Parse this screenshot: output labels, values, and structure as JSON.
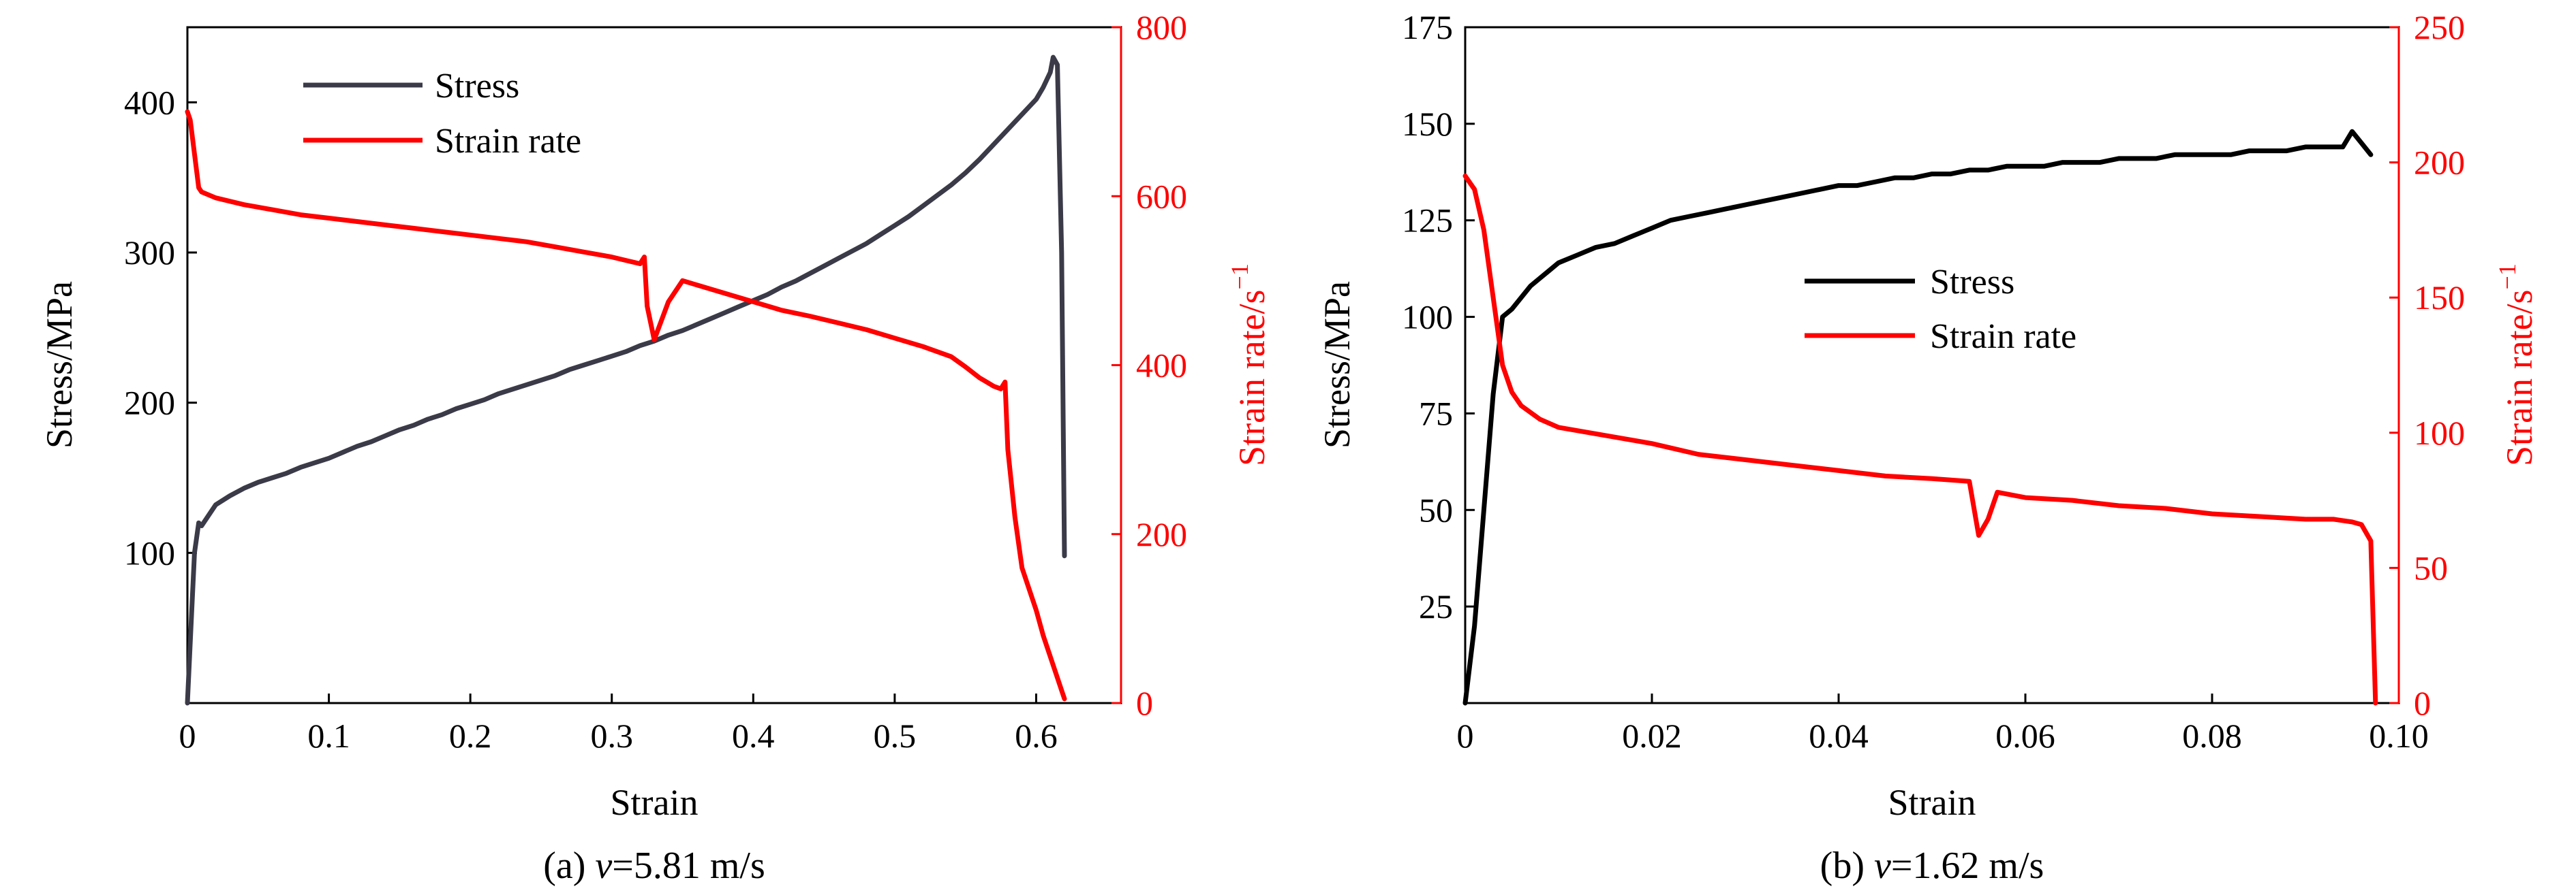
{
  "chart_data": [
    {
      "type": "line",
      "caption": "(a) v=5.81 m/s",
      "caption_prefix": "(a) ",
      "caption_var": "v",
      "caption_rest": "=5.81 m/s",
      "xlabel": "Strain",
      "ylabel": "Stress/MPa",
      "y2label_base": "Strain rate/s",
      "y2label_exp": "−1",
      "xlim": [
        0,
        0.66
      ],
      "ylim": [
        0,
        450
      ],
      "y2lim": [
        0,
        800
      ],
      "xticks": [
        0,
        0.1,
        0.2,
        0.3,
        0.4,
        0.5,
        0.6
      ],
      "xtick_labels": [
        "0",
        "0.1",
        "0.2",
        "0.3",
        "0.4",
        "0.5",
        "0.6"
      ],
      "yticks": [
        100,
        200,
        300,
        400
      ],
      "ytick_labels": [
        "100",
        "200",
        "300",
        "400"
      ],
      "y2ticks": [
        0,
        200,
        400,
        600,
        800
      ],
      "y2tick_labels": [
        "0",
        "200",
        "400",
        "600",
        "800"
      ],
      "legend": "top-left",
      "grid": false,
      "colors": {
        "stress": "#3a3a48",
        "strain_rate": "#ff0000"
      },
      "series": [
        {
          "name": "Stress",
          "axis": "left",
          "x": [
            0.0,
            0.003,
            0.005,
            0.008,
            0.01,
            0.015,
            0.02,
            0.03,
            0.04,
            0.05,
            0.06,
            0.07,
            0.08,
            0.09,
            0.1,
            0.11,
            0.12,
            0.13,
            0.14,
            0.15,
            0.16,
            0.17,
            0.18,
            0.19,
            0.2,
            0.21,
            0.22,
            0.23,
            0.24,
            0.25,
            0.26,
            0.27,
            0.28,
            0.29,
            0.3,
            0.31,
            0.32,
            0.33,
            0.34,
            0.35,
            0.36,
            0.37,
            0.38,
            0.39,
            0.4,
            0.41,
            0.42,
            0.43,
            0.44,
            0.45,
            0.46,
            0.47,
            0.48,
            0.49,
            0.5,
            0.51,
            0.52,
            0.53,
            0.54,
            0.55,
            0.56,
            0.57,
            0.58,
            0.59,
            0.6,
            0.605,
            0.61,
            0.612,
            0.615,
            0.618,
            0.62
          ],
          "values": [
            0,
            60,
            100,
            120,
            118,
            125,
            132,
            138,
            143,
            147,
            150,
            153,
            157,
            160,
            163,
            167,
            171,
            174,
            178,
            182,
            185,
            189,
            192,
            196,
            199,
            202,
            206,
            209,
            212,
            215,
            218,
            222,
            225,
            228,
            231,
            234,
            238,
            241,
            245,
            248,
            252,
            256,
            260,
            264,
            268,
            272,
            277,
            281,
            286,
            291,
            296,
            301,
            306,
            312,
            318,
            324,
            331,
            338,
            345,
            353,
            362,
            372,
            382,
            392,
            402,
            410,
            420,
            430,
            425,
            300,
            98
          ]
        },
        {
          "name": "Strain rate",
          "axis": "right",
          "x": [
            0.0,
            0.002,
            0.005,
            0.008,
            0.01,
            0.02,
            0.04,
            0.06,
            0.08,
            0.1,
            0.12,
            0.14,
            0.16,
            0.18,
            0.2,
            0.22,
            0.24,
            0.26,
            0.28,
            0.3,
            0.31,
            0.32,
            0.323,
            0.325,
            0.33,
            0.34,
            0.35,
            0.36,
            0.38,
            0.4,
            0.42,
            0.44,
            0.46,
            0.48,
            0.5,
            0.52,
            0.54,
            0.55,
            0.56,
            0.565,
            0.57,
            0.575,
            0.578,
            0.58,
            0.585,
            0.59,
            0.6,
            0.605,
            0.61,
            0.615,
            0.618,
            0.62
          ],
          "values": [
            700,
            690,
            650,
            610,
            605,
            598,
            590,
            584,
            578,
            574,
            570,
            566,
            562,
            558,
            554,
            550,
            546,
            540,
            534,
            528,
            524,
            520,
            528,
            470,
            430,
            475,
            500,
            495,
            485,
            475,
            465,
            458,
            450,
            442,
            432,
            422,
            410,
            398,
            385,
            380,
            375,
            372,
            380,
            300,
            220,
            160,
            110,
            80,
            55,
            30,
            15,
            5
          ]
        }
      ]
    },
    {
      "type": "line",
      "caption": "(b) v=1.62 m/s",
      "caption_prefix": "(b) ",
      "caption_var": "v",
      "caption_rest": "=1.62 m/s",
      "xlabel": "Strain",
      "ylabel": "Stress/MPa",
      "y2label_base": "Strain rate/s",
      "y2label_exp": "−1",
      "xlim": [
        0,
        0.1
      ],
      "ylim": [
        0,
        175
      ],
      "y2lim": [
        0,
        250
      ],
      "xticks": [
        0,
        0.02,
        0.04,
        0.06,
        0.08,
        0.1
      ],
      "xtick_labels": [
        "0",
        "0.02",
        "0.04",
        "0.06",
        "0.08",
        "0.10"
      ],
      "yticks": [
        25,
        50,
        75,
        100,
        125,
        150,
        175
      ],
      "ytick_labels": [
        "25",
        "50",
        "75",
        "100",
        "125",
        "150",
        "175"
      ],
      "y2ticks": [
        0,
        50,
        100,
        150,
        200,
        250
      ],
      "y2tick_labels": [
        "0",
        "50",
        "100",
        "150",
        "200",
        "250"
      ],
      "legend": "center",
      "grid": false,
      "colors": {
        "stress": "#000000",
        "strain_rate": "#ff0000"
      },
      "series": [
        {
          "name": "Stress",
          "axis": "left",
          "x": [
            0.0,
            0.001,
            0.002,
            0.003,
            0.004,
            0.005,
            0.006,
            0.007,
            0.008,
            0.009,
            0.01,
            0.012,
            0.014,
            0.016,
            0.018,
            0.02,
            0.022,
            0.024,
            0.026,
            0.028,
            0.03,
            0.032,
            0.034,
            0.036,
            0.038,
            0.04,
            0.042,
            0.044,
            0.046,
            0.048,
            0.05,
            0.052,
            0.054,
            0.056,
            0.058,
            0.06,
            0.062,
            0.064,
            0.066,
            0.068,
            0.07,
            0.072,
            0.074,
            0.076,
            0.078,
            0.08,
            0.082,
            0.084,
            0.086,
            0.088,
            0.09,
            0.092,
            0.094,
            0.095,
            0.096,
            0.097
          ],
          "values": [
            0,
            20,
            50,
            80,
            100,
            102,
            105,
            108,
            110,
            112,
            114,
            116,
            118,
            119,
            121,
            123,
            125,
            126,
            127,
            128,
            129,
            130,
            131,
            132,
            133,
            134,
            134,
            135,
            136,
            136,
            137,
            137,
            138,
            138,
            139,
            139,
            139,
            140,
            140,
            140,
            141,
            141,
            141,
            142,
            142,
            142,
            142,
            143,
            143,
            143,
            144,
            144,
            144,
            148,
            145,
            142
          ]
        },
        {
          "name": "Strain rate",
          "axis": "right",
          "x": [
            0.0,
            0.001,
            0.002,
            0.003,
            0.004,
            0.005,
            0.006,
            0.008,
            0.01,
            0.015,
            0.02,
            0.025,
            0.03,
            0.035,
            0.04,
            0.045,
            0.05,
            0.054,
            0.055,
            0.056,
            0.057,
            0.06,
            0.065,
            0.07,
            0.075,
            0.08,
            0.085,
            0.09,
            0.093,
            0.095,
            0.096,
            0.097,
            0.0975
          ],
          "values": [
            195,
            190,
            175,
            150,
            125,
            115,
            110,
            105,
            102,
            99,
            96,
            92,
            90,
            88,
            86,
            84,
            83,
            82,
            62,
            68,
            78,
            76,
            75,
            73,
            72,
            70,
            69,
            68,
            68,
            67,
            66,
            60,
            0
          ]
        }
      ]
    }
  ]
}
